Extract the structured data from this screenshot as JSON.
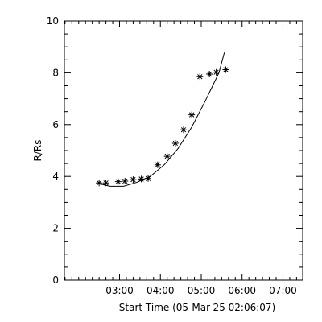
{
  "chart_data": {
    "type": "scatter",
    "title": "",
    "xlabel": "Start Time (05-Mar-25 02:06:07)",
    "ylabel": "R/Rs",
    "x_unit": "minutes after start time",
    "xlim": [
      -27,
      323
    ],
    "ylim": [
      0,
      10
    ],
    "x_ticks": [
      {
        "value": 54,
        "label": "03:00"
      },
      {
        "value": 114,
        "label": "04:00"
      },
      {
        "value": 174,
        "label": "05:00"
      },
      {
        "value": 234,
        "label": "06:00"
      },
      {
        "value": 294,
        "label": "07:00"
      }
    ],
    "y_ticks": [
      0,
      2,
      4,
      6,
      8,
      10
    ],
    "grid": false,
    "series": [
      {
        "marker": "asterisk",
        "points": [
          {
            "x": 24,
            "y": 3.75
          },
          {
            "x": 34,
            "y": 3.75
          },
          {
            "x": 52,
            "y": 3.8
          },
          {
            "x": 62,
            "y": 3.82
          },
          {
            "x": 74,
            "y": 3.88
          },
          {
            "x": 86,
            "y": 3.9
          },
          {
            "x": 96,
            "y": 3.92
          },
          {
            "x": 110,
            "y": 4.45
          },
          {
            "x": 124,
            "y": 4.78
          },
          {
            "x": 136,
            "y": 5.28
          },
          {
            "x": 148,
            "y": 5.8
          },
          {
            "x": 160,
            "y": 6.38
          },
          {
            "x": 172,
            "y": 7.85
          },
          {
            "x": 186,
            "y": 7.95
          },
          {
            "x": 196,
            "y": 8.02
          },
          {
            "x": 210,
            "y": 8.12
          }
        ]
      },
      {
        "marker": "line",
        "points": [
          {
            "x": 24,
            "y": 3.72
          },
          {
            "x": 40,
            "y": 3.62
          },
          {
            "x": 60,
            "y": 3.62
          },
          {
            "x": 80,
            "y": 3.78
          },
          {
            "x": 100,
            "y": 4.02
          },
          {
            "x": 120,
            "y": 4.46
          },
          {
            "x": 140,
            "y": 5.08
          },
          {
            "x": 160,
            "y": 5.9
          },
          {
            "x": 180,
            "y": 6.92
          },
          {
            "x": 200,
            "y": 8.0
          },
          {
            "x": 208,
            "y": 8.78
          }
        ]
      }
    ]
  }
}
